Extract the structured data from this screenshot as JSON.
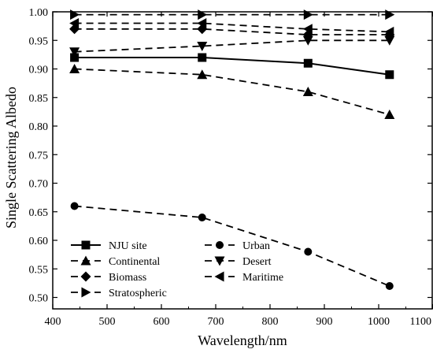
{
  "chart_data": {
    "type": "line",
    "title": "",
    "xlabel": "Wavelength/nm",
    "ylabel": "Single Scattering Albedo",
    "xlim": [
      400,
      1100
    ],
    "ylim": [
      0.48,
      1.0
    ],
    "xticks": [
      400,
      500,
      600,
      700,
      800,
      900,
      1000,
      1100
    ],
    "xtick_labels": [
      "400",
      "500",
      "600",
      "700",
      "800",
      "900",
      "1000",
      "1100"
    ],
    "yticks": [
      0.5,
      0.55,
      0.6,
      0.65,
      0.7,
      0.75,
      0.8,
      0.85,
      0.9,
      0.95,
      1.0
    ],
    "ytick_labels": [
      "0.50",
      "0.55",
      "0.60",
      "0.65",
      "0.70",
      "0.75",
      "0.80",
      "0.85",
      "0.90",
      "0.95",
      "1.00"
    ],
    "grid": false,
    "legend_position": "bottom-left",
    "series": [
      {
        "name": "NJU site",
        "marker": "square",
        "line": "solid",
        "x": [
          440,
          675,
          870,
          1020
        ],
        "y": [
          0.92,
          0.92,
          0.91,
          0.89
        ]
      },
      {
        "name": "Urban",
        "marker": "circle",
        "line": "dashed",
        "x": [
          440,
          675,
          870,
          1020
        ],
        "y": [
          0.66,
          0.64,
          0.58,
          0.52
        ]
      },
      {
        "name": "Continental",
        "marker": "triangle-up",
        "line": "dashed",
        "x": [
          440,
          675,
          870,
          1020
        ],
        "y": [
          0.9,
          0.89,
          0.86,
          0.82
        ]
      },
      {
        "name": "Desert",
        "marker": "triangle-down",
        "line": "dashed",
        "x": [
          440,
          675,
          870,
          1020
        ],
        "y": [
          0.93,
          0.94,
          0.95,
          0.95
        ]
      },
      {
        "name": "Biomass",
        "marker": "diamond",
        "line": "dashed",
        "x": [
          440,
          675,
          870,
          1020
        ],
        "y": [
          0.97,
          0.97,
          0.96,
          0.96
        ]
      },
      {
        "name": "Maritime",
        "marker": "triangle-left",
        "line": "dashed",
        "x": [
          440,
          675,
          870,
          1020
        ],
        "y": [
          0.98,
          0.98,
          0.97,
          0.965
        ]
      },
      {
        "name": "Stratospheric",
        "marker": "triangle-right",
        "line": "dashed",
        "x": [
          440,
          675,
          870,
          1020
        ],
        "y": [
          0.995,
          0.995,
          0.995,
          0.995
        ]
      }
    ]
  }
}
